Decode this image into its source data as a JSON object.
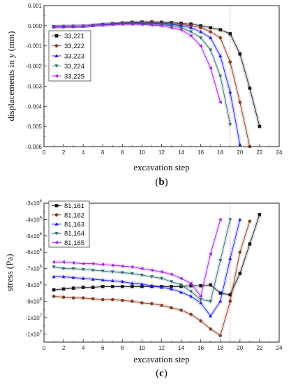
{
  "chart_data": [
    {
      "type": "line",
      "caption": "(b)",
      "caption_letter": "b",
      "xlabel": "excavation step",
      "ylabel": "displacements in y (mm)",
      "xlim": [
        0,
        24
      ],
      "ylim": [
        -0.006,
        0.001
      ],
      "xticks": [
        0,
        2,
        4,
        6,
        8,
        10,
        12,
        14,
        16,
        18,
        20,
        22,
        24
      ],
      "xtick_labels": [
        "0",
        "2",
        "4",
        "6",
        "8",
        "10",
        "12",
        "14",
        "16",
        "18",
        "20",
        "22",
        "24"
      ],
      "yticks": [
        0.001,
        0.0,
        -0.001,
        -0.002,
        -0.003,
        -0.004,
        -0.005,
        -0.006
      ],
      "ytick_labels": [
        "0.001",
        "0.000",
        "-0.001",
        "-0.002",
        "-0.003",
        "-0.004",
        "-0.005",
        "-0.006"
      ],
      "vline_x": 19,
      "legend_position": "top-left",
      "series": [
        {
          "name": "33,221",
          "color": "#1a1a1a",
          "marker": "square",
          "x": [
            1,
            2,
            3,
            4,
            5,
            6,
            7,
            8,
            9,
            10,
            11,
            12,
            13,
            14,
            15,
            16,
            17,
            18,
            19,
            20,
            21,
            22
          ],
          "y": [
            -5e-05,
            -4e-05,
            -3e-05,
            -2e-05,
            2e-05,
            6e-05,
            0.0001,
            0.00014,
            0.00017,
            0.00018,
            0.00018,
            0.00017,
            0.00015,
            0.00012,
            8e-05,
            0.0,
            -0.0001,
            -0.0002,
            -0.0004,
            -0.0014,
            -0.0031,
            -0.005
          ]
        },
        {
          "name": "33,222",
          "color": "#8b3a1f",
          "marker": "circle",
          "x": [
            1,
            2,
            3,
            4,
            5,
            6,
            7,
            8,
            9,
            10,
            11,
            12,
            13,
            14,
            15,
            16,
            17,
            18,
            19,
            20,
            21
          ],
          "y": [
            -5e-05,
            -4e-05,
            -3e-05,
            -2e-05,
            2e-05,
            6e-05,
            0.0001,
            0.00013,
            0.00015,
            0.00016,
            0.00015,
            0.00013,
            0.0001,
            6e-05,
            0.0,
            -0.0001,
            -0.0003,
            -0.0006,
            -0.0018,
            -0.0038,
            -0.006
          ]
        },
        {
          "name": "33,223",
          "color": "#1a1aff",
          "marker": "triangle-up",
          "x": [
            1,
            2,
            3,
            4,
            5,
            6,
            7,
            8,
            9,
            10,
            11,
            12,
            13,
            14,
            15,
            16,
            17,
            18,
            19,
            20
          ],
          "y": [
            -5e-05,
            -4e-05,
            -3e-05,
            -2e-05,
            2e-05,
            6e-05,
            9e-05,
            0.00012,
            0.00013,
            0.00013,
            0.00012,
            0.0001,
            6e-05,
            0.0,
            -0.0001,
            -0.0003,
            -0.0006,
            -0.0015,
            -0.0033,
            -0.0059
          ]
        },
        {
          "name": "33,224",
          "color": "#2b6e70",
          "marker": "triangle-down",
          "x": [
            1,
            2,
            3,
            4,
            5,
            6,
            7,
            8,
            9,
            10,
            11,
            12,
            13,
            14,
            15,
            16,
            17,
            18,
            19
          ],
          "y": [
            -5e-05,
            -4e-05,
            -3e-05,
            -2e-05,
            2e-05,
            5e-05,
            8e-05,
            0.0001,
            0.00011,
            0.0001,
            8e-05,
            5e-05,
            0.0,
            -0.0001,
            -0.0003,
            -0.0006,
            -0.0012,
            -0.0025,
            -0.0049
          ]
        },
        {
          "name": "33,225",
          "color": "#a020f0",
          "marker": "triangle-left",
          "x": [
            1,
            2,
            3,
            4,
            5,
            6,
            7,
            8,
            9,
            10,
            11,
            12,
            13,
            14,
            15,
            16,
            17,
            18
          ],
          "y": [
            -5e-05,
            -4e-05,
            -3e-05,
            -2e-05,
            1e-05,
            4e-05,
            6e-05,
            7e-05,
            7e-05,
            6e-05,
            3e-05,
            0.0,
            -0.0001,
            -0.0002,
            -0.0005,
            -0.001,
            -0.0021,
            -0.0038
          ]
        }
      ]
    },
    {
      "type": "line",
      "caption": "(c)",
      "caption_letter": "c",
      "xlabel": "excavation step",
      "ylabel": "stress (Pa)",
      "xlim": [
        0,
        24
      ],
      "ylim": [
        -11500000,
        -3000000
      ],
      "xticks": [
        0,
        2,
        4,
        6,
        8,
        10,
        12,
        14,
        16,
        18,
        20,
        22,
        24
      ],
      "xtick_labels": [
        "0",
        "2",
        "4",
        "6",
        "8",
        "10",
        "12",
        "14",
        "16",
        "18",
        "20",
        "22",
        "24"
      ],
      "yticks": [
        -3000000,
        -4000000,
        -5000000,
        -6000000,
        -7000000,
        -8000000,
        -9000000,
        -10000000,
        -11000000
      ],
      "ytick_labels": [
        {
          "base": "-3x10",
          "exp": "6"
        },
        {
          "base": "-4x10",
          "exp": "6"
        },
        {
          "base": "-5x10",
          "exp": "6"
        },
        {
          "base": "-6x10",
          "exp": "6"
        },
        {
          "base": "-7x10",
          "exp": "6"
        },
        {
          "base": "-8x10",
          "exp": "6"
        },
        {
          "base": "-9x10",
          "exp": "6"
        },
        {
          "base": "-1x10",
          "exp": "7"
        },
        {
          "base": "-1x10",
          "exp": "7"
        }
      ],
      "vline_x": 19,
      "legend_position": "top-left",
      "series": [
        {
          "name": "81,161",
          "color": "#1a1a1a",
          "marker": "square",
          "x": [
            1,
            2,
            3,
            4,
            5,
            6,
            7,
            8,
            9,
            10,
            11,
            12,
            13,
            14,
            15,
            16,
            17,
            18,
            19,
            20,
            21,
            22
          ],
          "y": [
            -8300000,
            -8250000,
            -8200000,
            -8150000,
            -8150000,
            -8100000,
            -8100000,
            -8100000,
            -8100000,
            -8100000,
            -8100000,
            -8100000,
            -8100000,
            -8100000,
            -8050000,
            -8050000,
            -8000000,
            -8500000,
            -8600000,
            -7300000,
            -5500000,
            -3700000
          ]
        },
        {
          "name": "81,162",
          "color": "#8b3a1f",
          "marker": "circle",
          "x": [
            1,
            2,
            3,
            4,
            5,
            6,
            7,
            8,
            9,
            10,
            11,
            12,
            13,
            14,
            15,
            16,
            17,
            18,
            19,
            20,
            21
          ],
          "y": [
            -8700000,
            -8750000,
            -8800000,
            -8800000,
            -8850000,
            -8900000,
            -8900000,
            -8950000,
            -9000000,
            -9100000,
            -9150000,
            -9250000,
            -9400000,
            -9550000,
            -9800000,
            -10200000,
            -10700000,
            -11100000,
            -9000000,
            -6000000,
            -4100000
          ]
        },
        {
          "name": "81,163",
          "color": "#1a1aff",
          "marker": "triangle-up",
          "x": [
            1,
            2,
            3,
            4,
            5,
            6,
            7,
            8,
            9,
            10,
            11,
            12,
            13,
            14,
            15,
            16,
            17,
            18,
            19,
            20
          ],
          "y": [
            -7500000,
            -7500000,
            -7550000,
            -7600000,
            -7650000,
            -7700000,
            -7750000,
            -7800000,
            -7900000,
            -7950000,
            -8050000,
            -8150000,
            -8250000,
            -8450000,
            -8700000,
            -9100000,
            -9900000,
            -9000000,
            -6400000,
            -4000000
          ]
        },
        {
          "name": "81,164",
          "color": "#2b6e70",
          "marker": "triangle-down",
          "x": [
            1,
            2,
            3,
            4,
            5,
            6,
            7,
            8,
            9,
            10,
            11,
            12,
            13,
            14,
            15,
            16,
            17,
            18,
            19
          ],
          "y": [
            -6900000,
            -7000000,
            -7000000,
            -7050000,
            -7100000,
            -7150000,
            -7200000,
            -7250000,
            -7300000,
            -7400000,
            -7500000,
            -7600000,
            -7800000,
            -8000000,
            -8400000,
            -8900000,
            -9000000,
            -6500000,
            -4000000
          ]
        },
        {
          "name": "81,165",
          "color": "#a020f0",
          "marker": "triangle-left",
          "x": [
            1,
            2,
            3,
            4,
            5,
            6,
            7,
            8,
            9,
            10,
            11,
            12,
            13,
            14,
            15,
            16,
            17,
            18
          ],
          "y": [
            -6600000,
            -6600000,
            -6650000,
            -6700000,
            -6700000,
            -6750000,
            -6800000,
            -6850000,
            -6900000,
            -7000000,
            -7100000,
            -7200000,
            -7350000,
            -7600000,
            -7900000,
            -8700000,
            -6100000,
            -4000000
          ]
        }
      ]
    }
  ]
}
